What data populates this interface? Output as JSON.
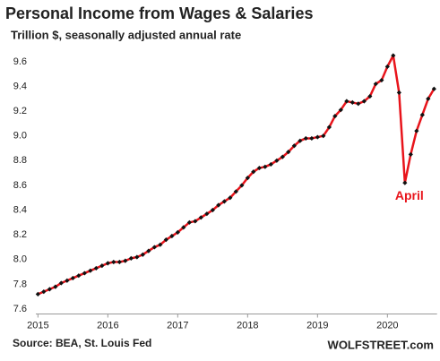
{
  "chart_data": {
    "type": "line",
    "title": "Personal Income from Wages & Salaries",
    "subtitle": "Trillion $, seasonally adjusted annual rate",
    "source": "Source: BEA, St. Louis Fed",
    "brand": "WOLFSTREET.com",
    "annotation": {
      "text": "April",
      "x": 2020.25,
      "y": 8.62
    },
    "x": [
      2015,
      2015.083,
      2015.167,
      2015.25,
      2015.333,
      2015.417,
      2015.5,
      2015.583,
      2015.667,
      2015.75,
      2015.833,
      2015.917,
      2016,
      2016.083,
      2016.167,
      2016.25,
      2016.333,
      2016.417,
      2016.5,
      2016.583,
      2016.667,
      2016.75,
      2016.833,
      2016.917,
      2017,
      2017.083,
      2017.167,
      2017.25,
      2017.333,
      2017.417,
      2017.5,
      2017.583,
      2017.667,
      2017.75,
      2017.833,
      2017.917,
      2018,
      2018.083,
      2018.167,
      2018.25,
      2018.333,
      2018.417,
      2018.5,
      2018.583,
      2018.667,
      2018.75,
      2018.833,
      2018.917,
      2019,
      2019.083,
      2019.167,
      2019.25,
      2019.333,
      2019.417,
      2019.5,
      2019.583,
      2019.667,
      2019.75,
      2019.833,
      2019.917,
      2020,
      2020.083,
      2020.167,
      2020.25,
      2020.333,
      2020.417,
      2020.5,
      2020.583,
      2020.667
    ],
    "series": [
      {
        "name": "Wages & Salaries",
        "color": "#e8141b",
        "marker_color": "#111111",
        "values": [
          7.72,
          7.74,
          7.76,
          7.78,
          7.81,
          7.83,
          7.85,
          7.87,
          7.89,
          7.91,
          7.93,
          7.95,
          7.97,
          7.98,
          7.98,
          7.99,
          8.01,
          8.02,
          8.04,
          8.07,
          8.1,
          8.12,
          8.16,
          8.19,
          8.22,
          8.26,
          8.3,
          8.31,
          8.34,
          8.37,
          8.4,
          8.44,
          8.47,
          8.5,
          8.55,
          8.6,
          8.66,
          8.71,
          8.74,
          8.75,
          8.77,
          8.8,
          8.83,
          8.87,
          8.92,
          8.96,
          8.98,
          8.98,
          8.99,
          9.0,
          9.07,
          9.16,
          9.21,
          9.28,
          9.27,
          9.26,
          9.28,
          9.32,
          9.42,
          9.45,
          9.56,
          9.65,
          9.35,
          8.62,
          8.85,
          9.04,
          9.17,
          9.3,
          9.38
        ]
      }
    ],
    "xlim": [
      2014.97,
      2020.71
    ],
    "xticks": [
      2015,
      2016,
      2017,
      2018,
      2019,
      2020
    ],
    "ylim": [
      7.56,
      9.78
    ],
    "yticks": [
      {
        "value": 7.6,
        "label": "7.6"
      },
      {
        "value": 7.8,
        "label": "7.8"
      },
      {
        "value": 8,
        "label": "8.0"
      },
      {
        "value": 8.2,
        "label": "8.2"
      },
      {
        "value": 8.4,
        "label": "8.4"
      },
      {
        "value": 8.6,
        "label": "8.6"
      },
      {
        "value": 8.8,
        "label": "8.8"
      },
      {
        "value": 9,
        "label": "9.0"
      },
      {
        "value": 9.2,
        "label": "9.2"
      },
      {
        "value": 9.4,
        "label": "9.4"
      },
      {
        "value": 9.6,
        "label": "9.6"
      }
    ],
    "grid": false
  }
}
